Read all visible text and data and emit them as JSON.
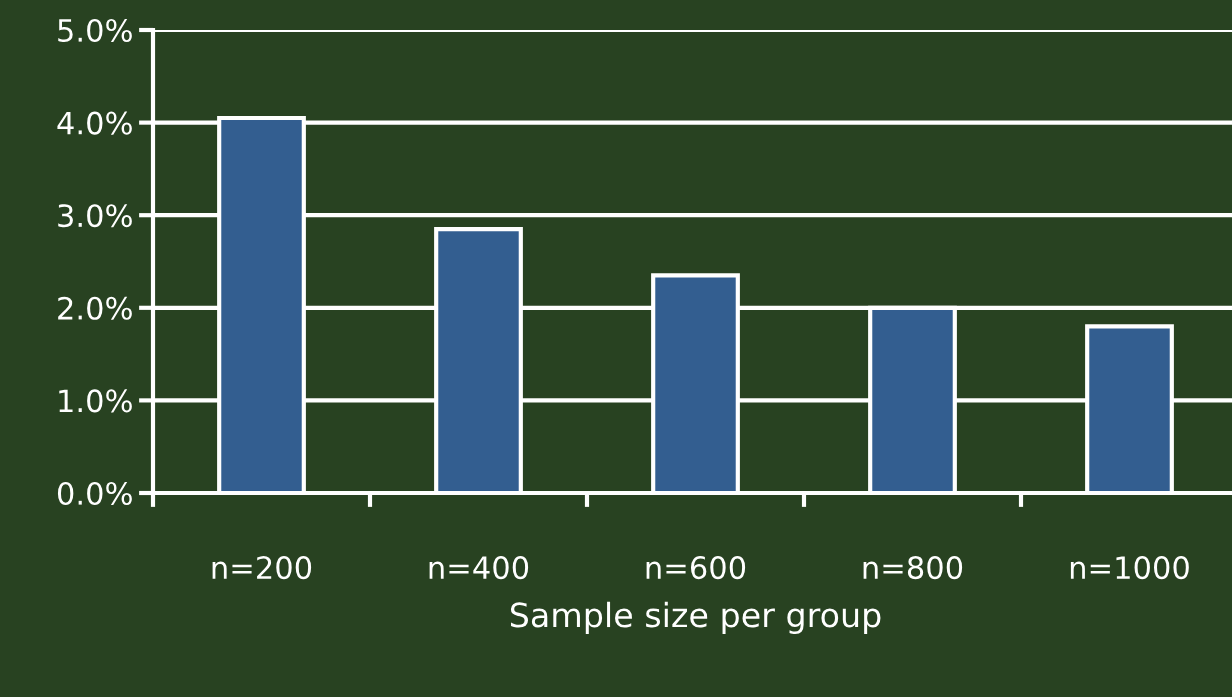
{
  "chart_data": {
    "type": "bar",
    "xlabel": "Sample size per group",
    "categories": [
      "n=200",
      "n=400",
      "n=600",
      "n=800",
      "n=1000"
    ],
    "values": [
      4.05,
      2.85,
      2.35,
      2.0,
      1.8
    ],
    "color": "#335e90",
    "ylim": [
      0,
      5
    ],
    "yticks": [
      {
        "value": 0,
        "label": "0.0%"
      },
      {
        "value": 1,
        "label": "1.0%"
      },
      {
        "value": 2,
        "label": "2.0%"
      },
      {
        "value": 3,
        "label": "3.0%"
      },
      {
        "value": 4,
        "label": "4.0%"
      },
      {
        "value": 5,
        "label": "5.0%"
      }
    ],
    "grid": "y",
    "legend": false
  }
}
